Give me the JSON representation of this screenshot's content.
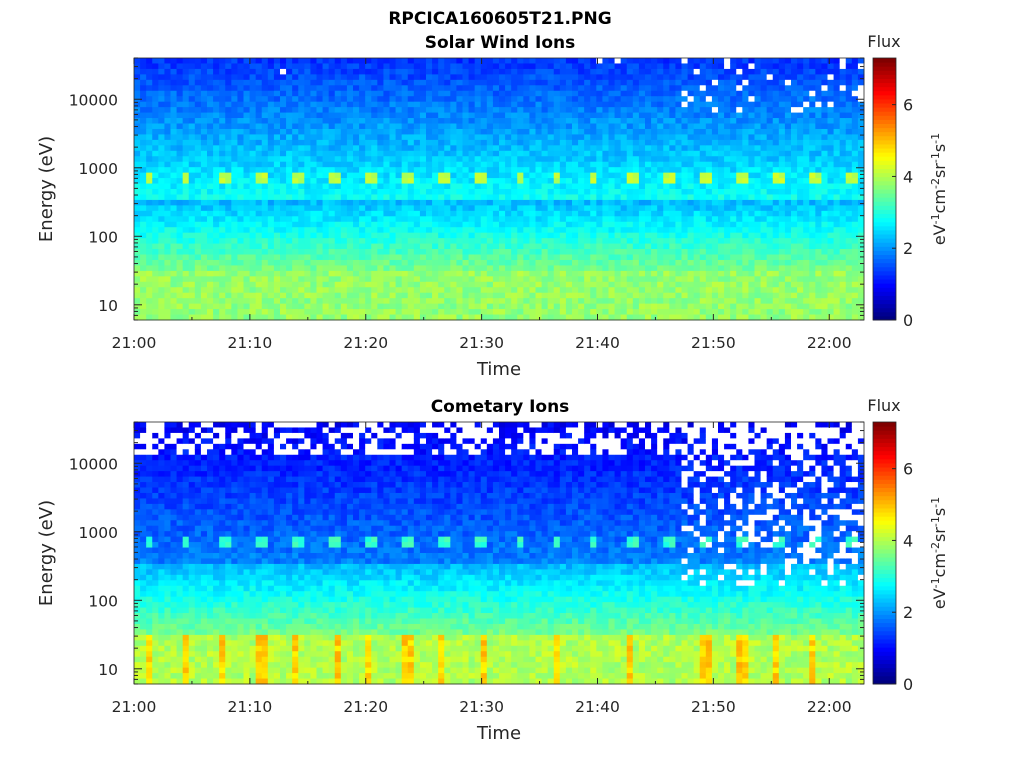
{
  "figure_title": "RPCICA160605T21.PNG",
  "chart_data": [
    {
      "type": "heatmap",
      "title": "Solar Wind Ions",
      "xlabel": "Time",
      "ylabel": "Energy (eV)",
      "xticks": [
        "21:00",
        "21:10",
        "21:20",
        "21:30",
        "21:40",
        "21:50",
        "22:00"
      ],
      "xlim": [
        "21:00",
        "22:03"
      ],
      "yscale": "log",
      "yticks": [
        "10",
        "100",
        "1000",
        "10000"
      ],
      "ylim": [
        6,
        40000
      ],
      "colorbar": {
        "title": "Flux",
        "label": "eV⁻¹cm⁻²sr⁻¹s⁻¹",
        "label_parts": [
          "eV",
          "-1",
          "cm",
          "-2",
          "sr",
          "-1",
          "s",
          "-1"
        ],
        "ticks": [
          "0",
          "2",
          "4",
          "6"
        ],
        "range": [
          0,
          7.3
        ],
        "colormap": "jet"
      },
      "features": {
        "low_energy_level": 3.8,
        "background_high_energy_level": 1.0,
        "beam_energy_eV": 700,
        "beam_level": 3.9,
        "beam_period_minutes": 3.2,
        "noisy_from": "21:47"
      }
    },
    {
      "type": "heatmap",
      "title": "Cometary Ions",
      "xlabel": "Time",
      "ylabel": "Energy (eV)",
      "xticks": [
        "21:00",
        "21:10",
        "21:20",
        "21:30",
        "21:40",
        "21:50",
        "22:00"
      ],
      "xlim": [
        "21:00",
        "22:03"
      ],
      "yscale": "log",
      "yticks": [
        "10",
        "100",
        "1000",
        "10000"
      ],
      "ylim": [
        6,
        40000
      ],
      "colorbar": {
        "title": "Flux",
        "label": "eV⁻¹cm⁻²sr⁻¹s⁻¹",
        "label_parts": [
          "eV",
          "-1",
          "cm",
          "-2",
          "sr",
          "-1",
          "s",
          "-1"
        ],
        "ticks": [
          "0",
          "2",
          "4",
          "6"
        ],
        "range": [
          0,
          7.3
        ],
        "colormap": "jet"
      },
      "features": {
        "low_energy_level": 4.0,
        "background_high_energy_level": 0.6,
        "beam_energy_eV": 700,
        "beam_level": 2.9,
        "beam_period_minutes": 3.2,
        "noisy_from": "21:47"
      }
    }
  ]
}
